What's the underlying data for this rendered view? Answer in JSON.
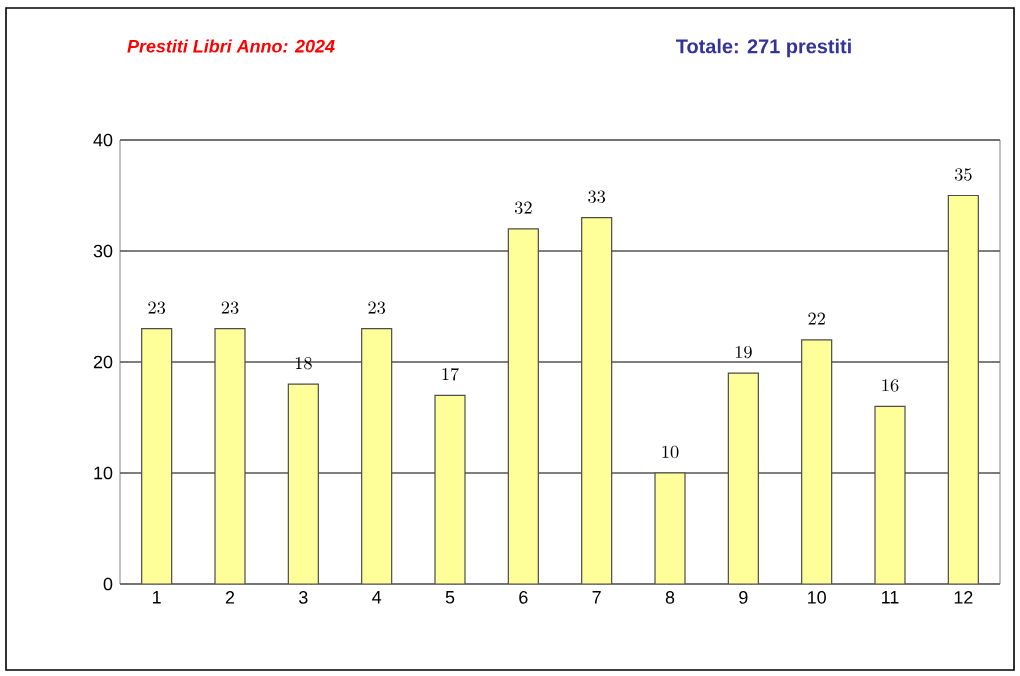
{
  "chart_data": {
    "type": "bar",
    "title": "Prestiti Libri Anno: 2024",
    "subtitle": "Totale:   271   prestiti",
    "categories": [
      "1",
      "2",
      "3",
      "4",
      "5",
      "6",
      "7",
      "8",
      "9",
      "10",
      "11",
      "12"
    ],
    "values": [
      23,
      23,
      18,
      23,
      17,
      32,
      33,
      10,
      19,
      22,
      16,
      35
    ],
    "color": "#ffff99",
    "ylim": [
      0,
      40
    ],
    "yticks": [
      0,
      10,
      20,
      30,
      40
    ],
    "grid": "y",
    "data_labels": true
  }
}
